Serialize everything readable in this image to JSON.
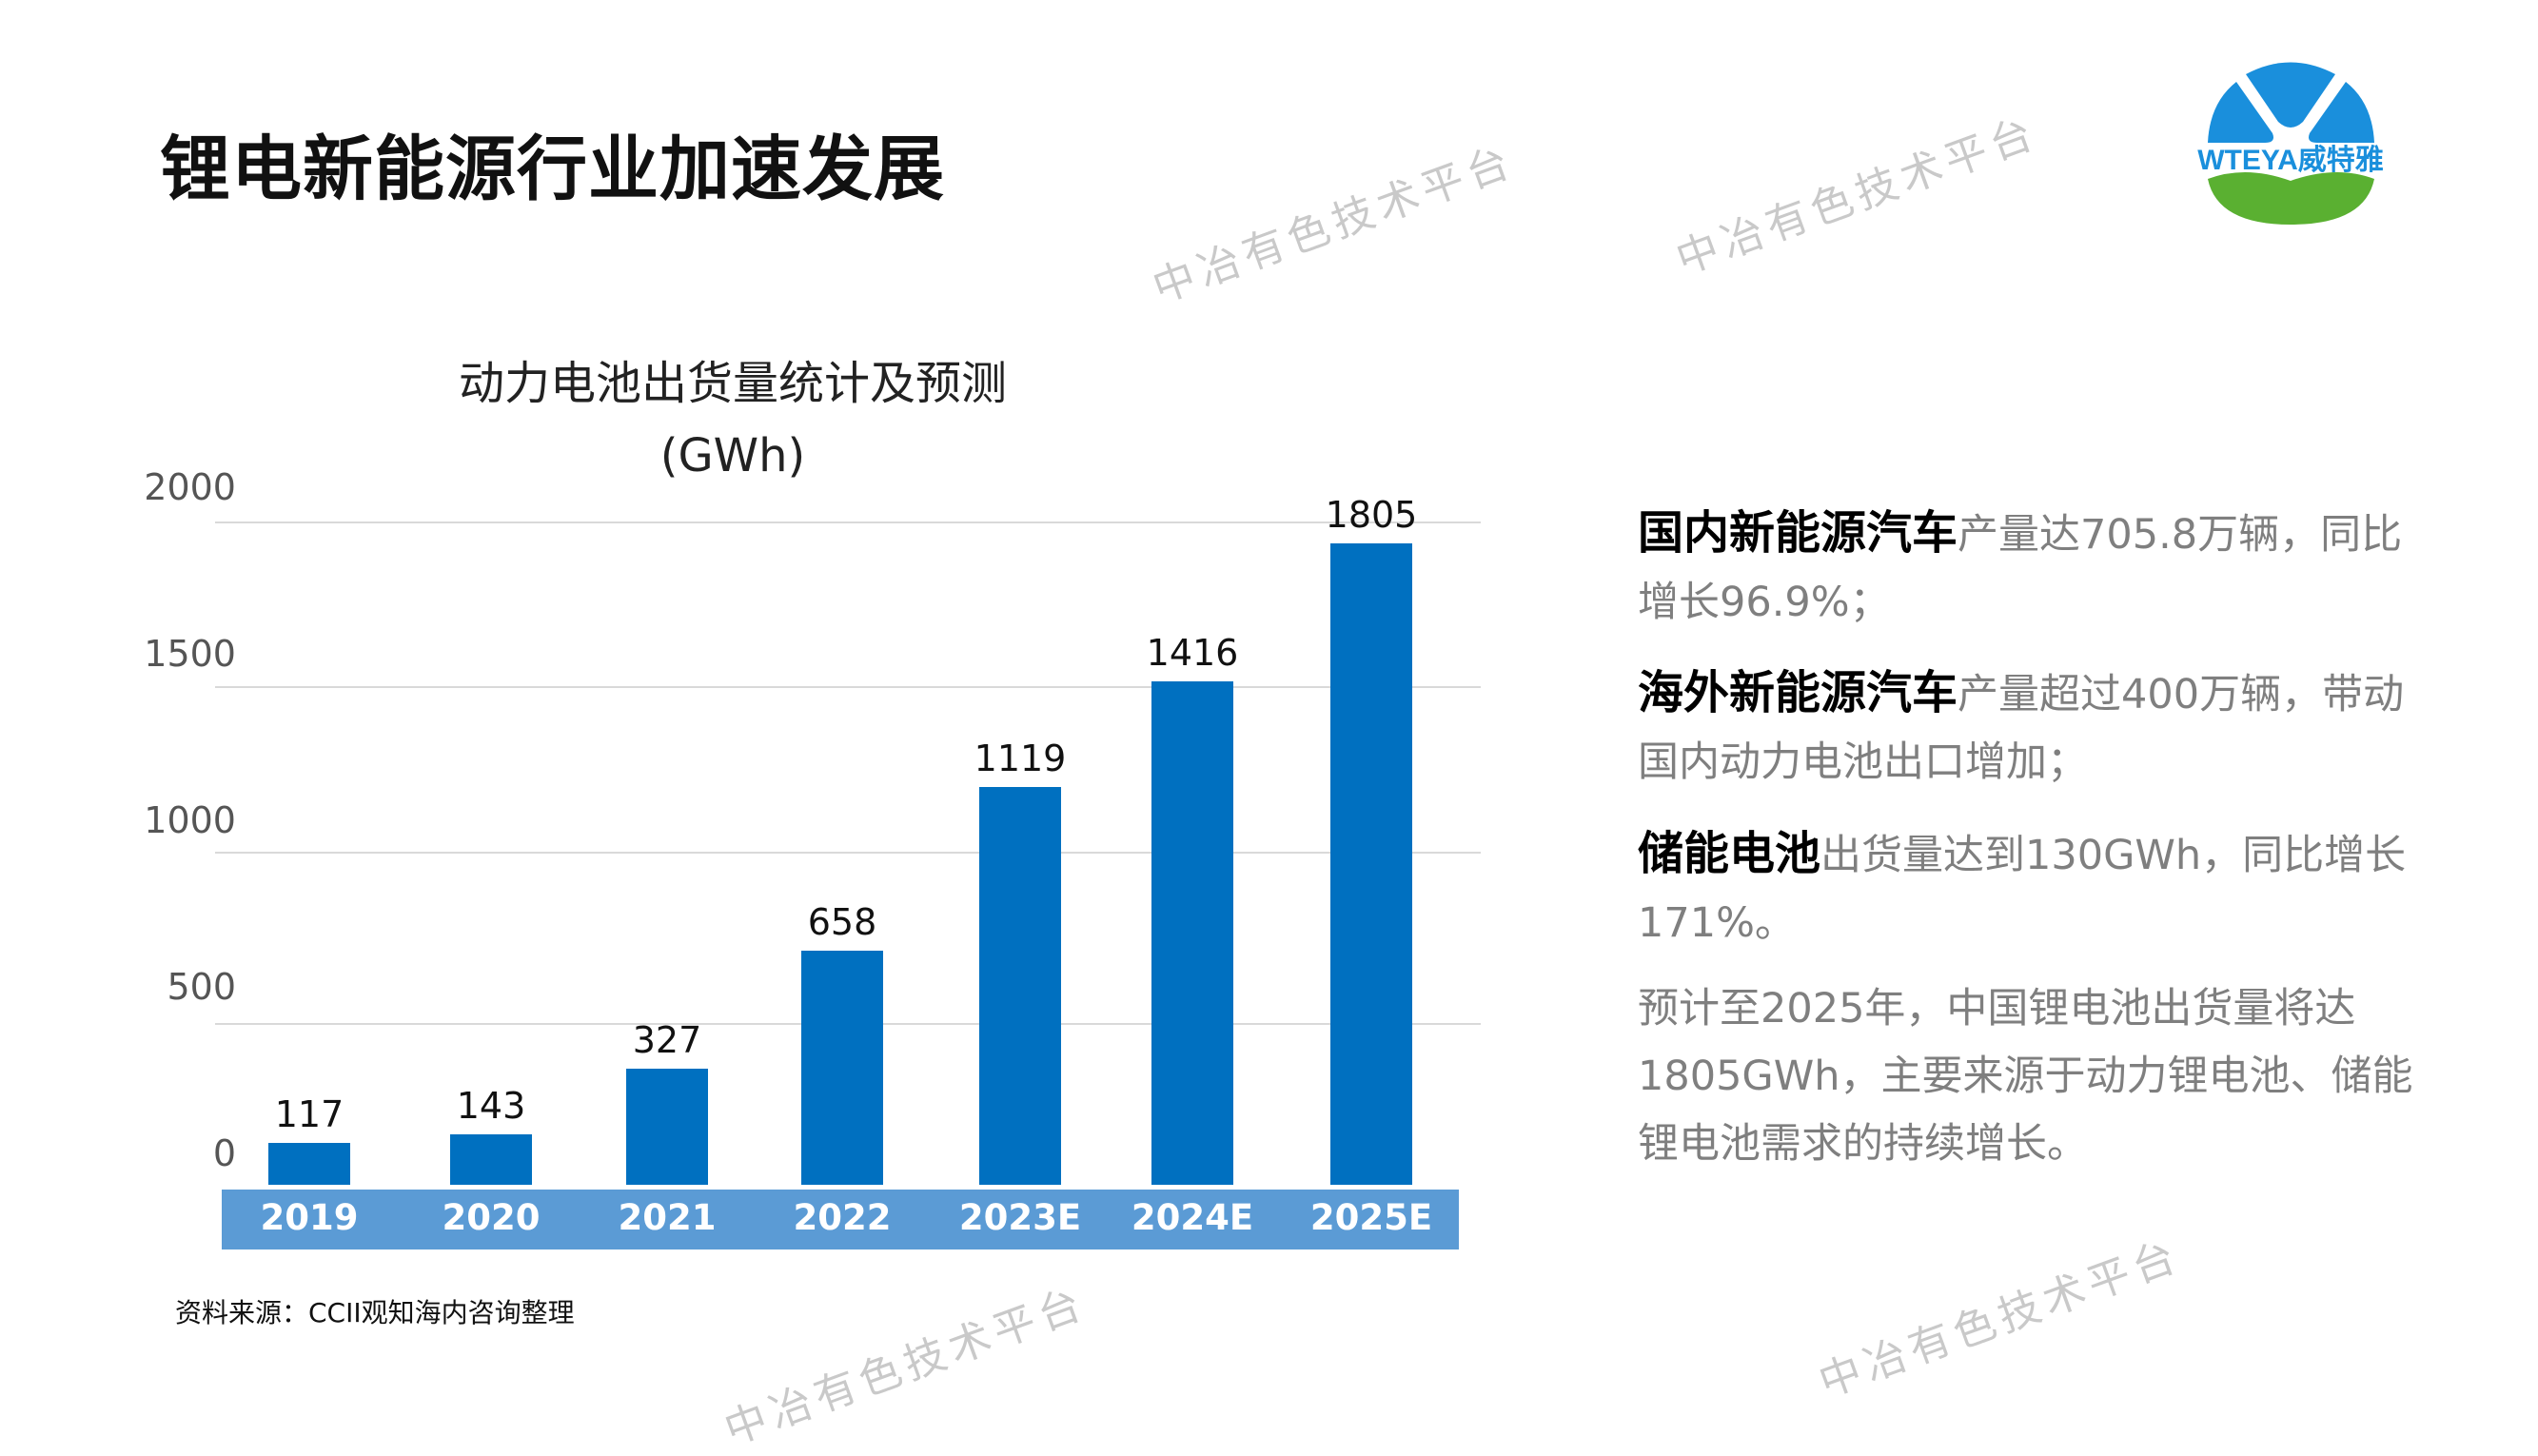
{
  "title": "锂电新能源行业加速发展",
  "logo": {
    "text_en": "WTEYA",
    "text_cn": "威特雅",
    "colors": {
      "blue": "#1a8fdc",
      "green": "#5ab031"
    }
  },
  "watermark": "中冶有色技术平台",
  "chart_data": {
    "type": "bar",
    "title": "动力电池出货量统计及预测",
    "subtitle": "(GWh)",
    "categories": [
      "2019",
      "2020",
      "2021",
      "2022",
      "2023E",
      "2024E",
      "2025E"
    ],
    "values": [
      117,
      143,
      327,
      658,
      1119,
      1416,
      1805
    ],
    "yticks": [
      "0",
      "500",
      "1000",
      "1500",
      "2000"
    ],
    "ylim": [
      0,
      2000
    ],
    "grid": true,
    "bar_color": "#0070c0",
    "category_band_color": "#5b9bd5"
  },
  "source": "资料来源：CCII观知海内咨询整理",
  "points": [
    {
      "bold": "国内新能源汽车",
      "text": "产量达705.8万辆，同比增长96.9%；"
    },
    {
      "bold": "海外新能源汽车",
      "text": "产量超过400万辆，带动国内动力电池出口增加；"
    },
    {
      "bold": "储能电池",
      "text": "出货量达到130GWh，同比增长171%。"
    },
    {
      "bold": "",
      "text": "预计至2025年，中国锂电池出货量将达1805GWh，主要来源于动力锂电池、储能锂电池需求的持续增长。"
    }
  ]
}
